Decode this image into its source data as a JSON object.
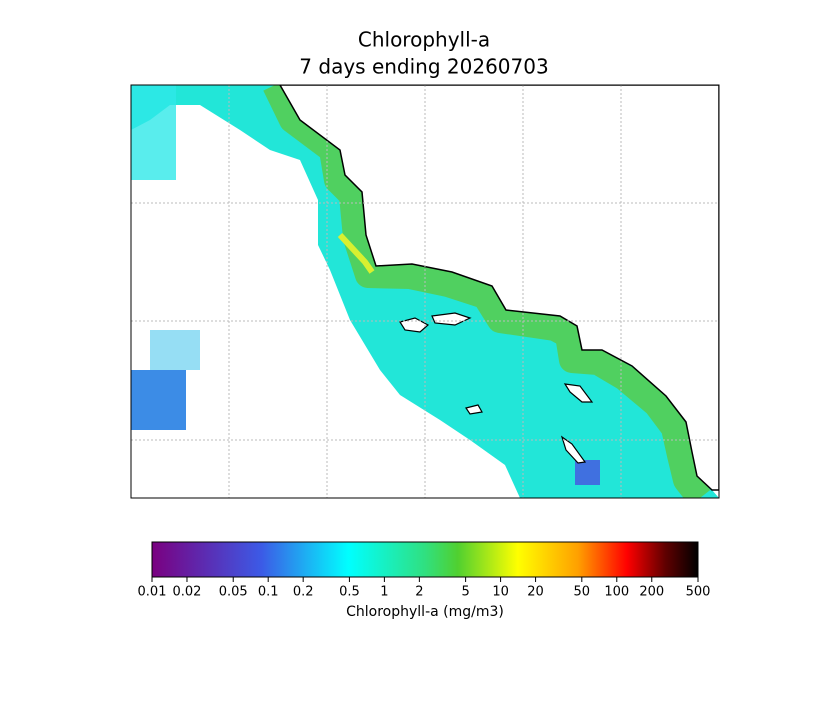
{
  "title": [
    "Chlorophyll-a",
    "7 days ending 20260703"
  ],
  "colorbar": {
    "label": "Chlorophyll-a (mg/m3)",
    "scale": "log",
    "lim": [
      0.01,
      500
    ],
    "ticks": [
      0.01,
      0.02,
      0.05,
      0.1,
      0.2,
      0.5,
      1,
      2,
      5,
      10,
      20,
      50,
      100,
      200,
      500
    ]
  }
}
